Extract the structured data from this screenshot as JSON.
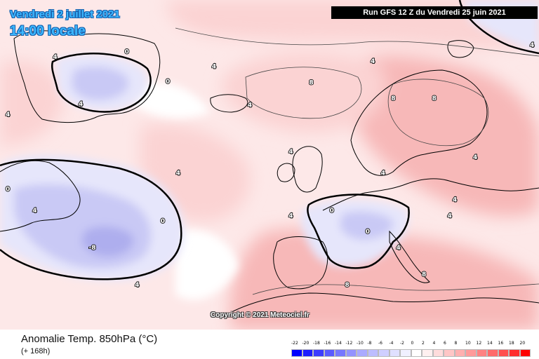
{
  "title": {
    "date": "Vendredi 2 juillet 2021",
    "time": "14:00 locale"
  },
  "run_banner": "Run GFS 12 Z du Vendredi 25 juin 2021",
  "copyright": "Copyright © 2021 Meteociel.fr",
  "footer": {
    "field": "Anomalie Temp. 850hPa (°C)",
    "lead": "(+ 168h)"
  },
  "legend": {
    "values": [
      "-22",
      "-20",
      "-18",
      "-16",
      "-14",
      "-12",
      "-10",
      "-8",
      "-6",
      "-4",
      "-2",
      "0",
      "2",
      "4",
      "6",
      "8",
      "10",
      "12",
      "14",
      "16",
      "18",
      "20"
    ],
    "colors": [
      "#0000ff",
      "#1e1eff",
      "#3c3cff",
      "#5a5aff",
      "#7777ff",
      "#9393ff",
      "#aaaaff",
      "#bdbdff",
      "#cfcfff",
      "#e0e0ff",
      "#f0f0ff",
      "#ffffff",
      "#fff0f0",
      "#ffdcdc",
      "#ffc6c6",
      "#ffb0b0",
      "#ff9a9a",
      "#ff8282",
      "#ff6a6a",
      "#ff4f4f",
      "#ff2e2e",
      "#ff0000"
    ]
  },
  "colors": {
    "warm_weak": "#fde8e8",
    "warm": "#fbd3d3",
    "warm_strong": "#f7b8b8",
    "cold_weak": "#e6e6fb",
    "cold": "#c9c9f5",
    "cold_strong": "#aeaeee",
    "land_outline": "#000000",
    "zero_line": "#000000"
  },
  "map_labels": [
    {
      "text": "4",
      "lon": -52.0,
      "lat": 70.8
    },
    {
      "text": "0",
      "lon": -38.0,
      "lat": 71.8
    },
    {
      "text": "4",
      "lon": -47.0,
      "lat": 62.0
    },
    {
      "text": "0",
      "lon": -30.0,
      "lat": 66.2
    },
    {
      "text": "4",
      "lon": -21.0,
      "lat": 69.0
    },
    {
      "text": "4",
      "lon": -66.0,
      "lat": 60.0
    },
    {
      "text": "0",
      "lon": -63.0,
      "lat": 46.0
    },
    {
      "text": "4",
      "lon": -56.0,
      "lat": 42.0
    },
    {
      "text": "-8",
      "lon": -45.0,
      "lat": 35.0
    },
    {
      "text": "4",
      "lon": -36.0,
      "lat": 28.0
    },
    {
      "text": "0",
      "lon": -31.0,
      "lat": 40.0
    },
    {
      "text": "4",
      "lon": -28.0,
      "lat": 49.0
    },
    {
      "text": "4",
      "lon": -14.0,
      "lat": 61.8
    },
    {
      "text": "8",
      "lon": -2.0,
      "lat": 66.0
    },
    {
      "text": "4",
      "lon": 10.0,
      "lat": 70.0
    },
    {
      "text": "8",
      "lon": 14.0,
      "lat": 63.0
    },
    {
      "text": "8",
      "lon": 22.0,
      "lat": 63.0
    },
    {
      "text": "4",
      "lon": 42.0,
      "lat": 73.0
    },
    {
      "text": "4",
      "lon": -6.0,
      "lat": 53.0
    },
    {
      "text": "0",
      "lon": 2.0,
      "lat": 42.0
    },
    {
      "text": "0",
      "lon": 9.0,
      "lat": 38.0
    },
    {
      "text": "4",
      "lon": 12.0,
      "lat": 49.0
    },
    {
      "text": "4",
      "lon": -6.0,
      "lat": 41.0
    },
    {
      "text": "4",
      "lon": 15.0,
      "lat": 35.0
    },
    {
      "text": "4",
      "lon": 25.0,
      "lat": 41.0
    },
    {
      "text": "8",
      "lon": 20.0,
      "lat": 30.0
    },
    {
      "text": "8",
      "lon": 5.0,
      "lat": 28.0
    },
    {
      "text": "4",
      "lon": 30.0,
      "lat": 52.0
    },
    {
      "text": "4",
      "lon": 26.0,
      "lat": 44.0
    }
  ]
}
